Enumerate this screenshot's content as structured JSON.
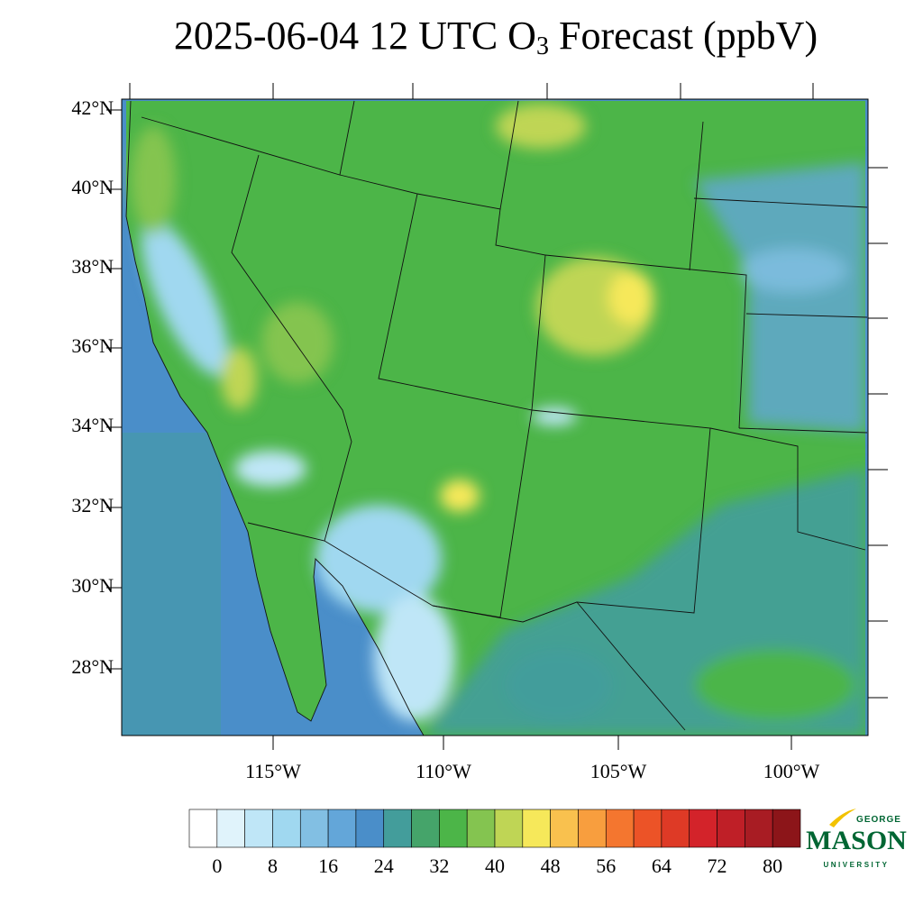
{
  "header": {
    "title_before": "2025-06-04 12 UTC O",
    "title_sub": "3",
    "title_after": " Forecast (ppbV)"
  },
  "map": {
    "lat_labels": [
      "42°N",
      "40°N",
      "38°N",
      "36°N",
      "34°N",
      "32°N",
      "30°N",
      "28°N"
    ],
    "lon_labels": [
      "115°W",
      "110°W",
      "105°W",
      "100°W"
    ]
  },
  "colorbar": {
    "lim": [
      -4,
      84
    ],
    "ticks": [
      0,
      8,
      16,
      24,
      32,
      40,
      48,
      56,
      64,
      72,
      80
    ],
    "colors": [
      "#ffffff",
      "#e0f3fb",
      "#bfe6f7",
      "#a0d8f0",
      "#82bfe3",
      "#63a6d9",
      "#4a8ec9",
      "#439d9b",
      "#45a46a",
      "#4cb548",
      "#84c450",
      "#bfd555",
      "#f6e85a",
      "#f9c14e",
      "#f89e3e",
      "#f4762f",
      "#ec5327",
      "#de3a26",
      "#d3232a",
      "#bf1f27",
      "#a81c23",
      "#8c1519"
    ]
  },
  "logo": {
    "top": "GEORGE",
    "name": "MASON",
    "bottom": "UNIVERSITY"
  }
}
